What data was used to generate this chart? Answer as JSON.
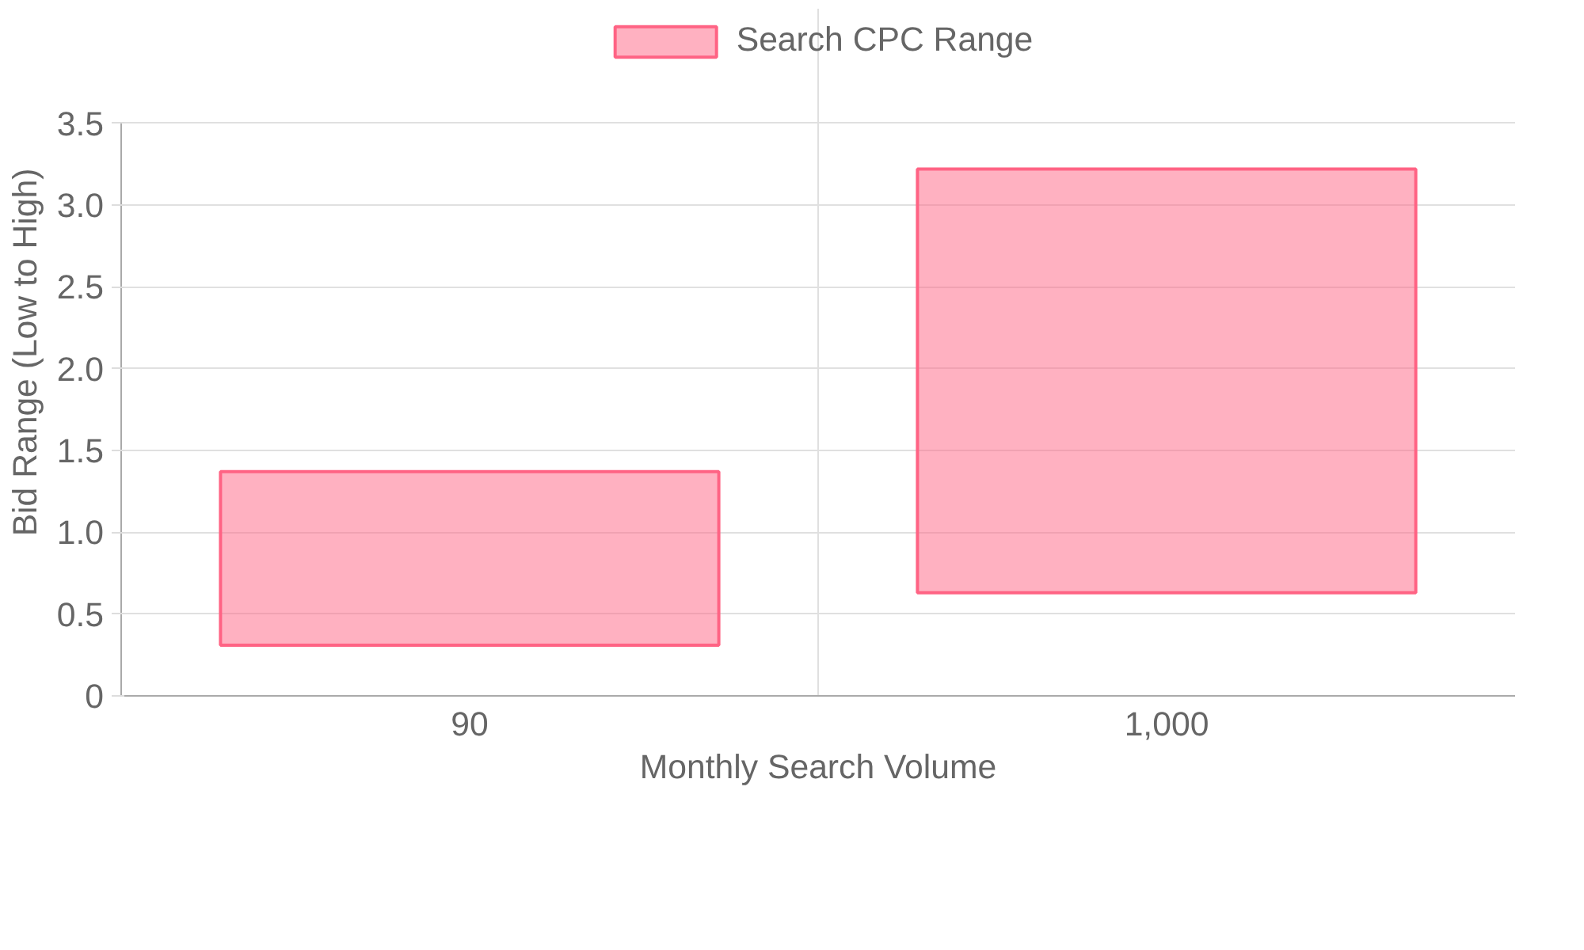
{
  "chart_data": {
    "type": "bar",
    "xlabel": "Monthly Search Volume",
    "ylabel": "Bid Range (Low to High)",
    "categories": [
      "90",
      "1,000"
    ],
    "series": [
      {
        "name": "Search CPC Range",
        "color": "#ff6384",
        "values": [
          1.06,
          2.59
        ],
        "base": [
          0.31,
          0.63
        ]
      }
    ],
    "ylim": [
      0,
      3.5
    ],
    "yticks": [
      0,
      0.5,
      {
        "value": 1,
        "label": "1.0"
      },
      1.5,
      {
        "value": 2,
        "label": "2.0"
      },
      2.5,
      {
        "value": 3,
        "label": "3.0"
      },
      3.5
    ],
    "grid": true,
    "legend": "top"
  }
}
